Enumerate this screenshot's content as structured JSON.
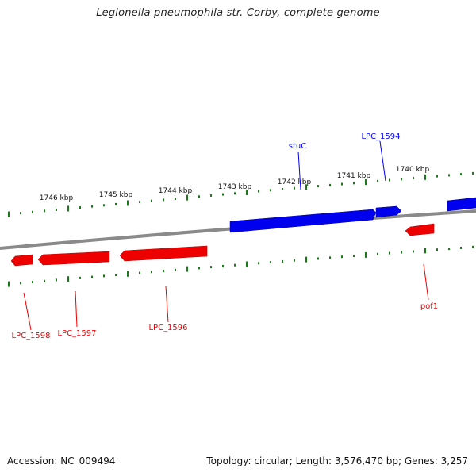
{
  "title": "Legionella pneumophila str. Corby, complete genome",
  "footer": {
    "accession": "Accession: NC_009494",
    "summary": "Topology: circular; Length: 3,576,470 bp; Genes: 3,257"
  },
  "colors": {
    "forward_strand": "#0000ee",
    "reverse_strand": "#ee0000",
    "tick": "#1a7a1a",
    "backbone": "#8a8a8a",
    "tick_label": "#111111"
  },
  "scale": {
    "unit": "kbp",
    "labels": [
      "1746 kbp",
      "1745 kbp",
      "1744 kbp",
      "1743 kbp",
      "1742 kbp",
      "1741 kbp",
      "1740 kbp"
    ]
  },
  "genes": {
    "forward": [
      {
        "name": "stuC",
        "color": "#0000ee"
      },
      {
        "name": "LPC_1594",
        "color": "#0000ee"
      }
    ],
    "reverse": [
      {
        "name": "LPC_1598",
        "color": "#ee0000"
      },
      {
        "name": "LPC_1597",
        "color": "#ee0000"
      },
      {
        "name": "LPC_1596",
        "color": "#ee0000"
      },
      {
        "name": "pof1",
        "color": "#ee0000"
      }
    ]
  }
}
